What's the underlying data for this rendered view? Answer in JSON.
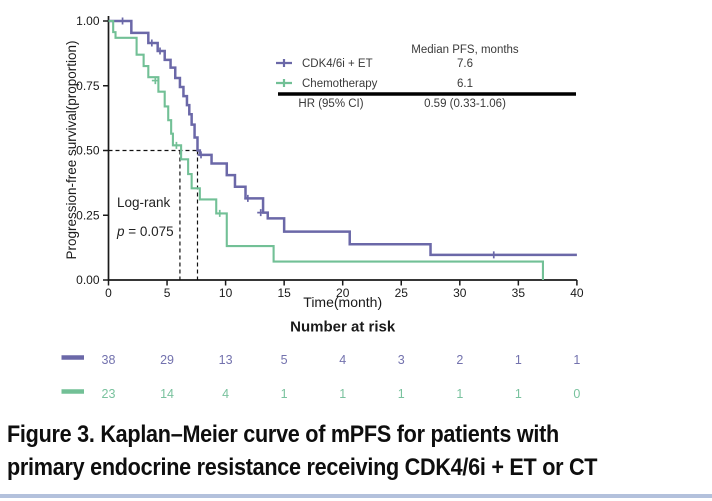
{
  "chart_data": {
    "type": "line",
    "subtype": "kaplan-meier-step",
    "xlabel": "Time(month)",
    "ylabel": "Progression-free survival(proportion)",
    "xlim": [
      0,
      40
    ],
    "ylim": [
      0,
      1
    ],
    "xticks": [
      0,
      5,
      10,
      15,
      20,
      25,
      30,
      35,
      40
    ],
    "ytick_labels": [
      "1.00",
      "0.75",
      "0.50",
      "0.25",
      "0.00"
    ],
    "ytick_values": [
      1.0,
      0.75,
      0.5,
      0.25,
      0.0
    ],
    "grid": false,
    "series": [
      {
        "name": "CDK4/6i + ET",
        "color": "#6b68a8",
        "median_pfs_months": 7.6,
        "steps": [
          [
            0,
            1.0
          ],
          [
            1.95,
            0.954
          ],
          [
            3.4,
            0.915
          ],
          [
            4.2,
            0.884
          ],
          [
            4.8,
            0.85
          ],
          [
            5.3,
            0.82
          ],
          [
            5.7,
            0.78
          ],
          [
            6.1,
            0.745
          ],
          [
            6.4,
            0.71
          ],
          [
            6.7,
            0.675
          ],
          [
            6.9,
            0.64
          ],
          [
            7.1,
            0.6
          ],
          [
            7.35,
            0.55
          ],
          [
            7.6,
            0.5
          ],
          [
            7.8,
            0.483
          ],
          [
            8.8,
            0.45
          ],
          [
            10.1,
            0.405
          ],
          [
            10.8,
            0.36
          ],
          [
            11.7,
            0.315
          ],
          [
            13.2,
            0.26
          ],
          [
            13.6,
            0.238
          ],
          [
            15.0,
            0.187
          ],
          [
            20.6,
            0.138
          ],
          [
            27.5,
            0.097
          ],
          [
            40,
            0.097
          ]
        ],
        "censors": [
          [
            1.2,
            1.0
          ],
          [
            3.7,
            0.915
          ],
          [
            4.4,
            0.884
          ],
          [
            7.9,
            0.483
          ],
          [
            11.9,
            0.315
          ],
          [
            13.0,
            0.26
          ],
          [
            32.9,
            0.097
          ]
        ]
      },
      {
        "name": "Chemotherapy",
        "color": "#72c096",
        "median_pfs_months": 6.1,
        "steps": [
          [
            0,
            1.0
          ],
          [
            0.4,
            0.957
          ],
          [
            0.6,
            0.935
          ],
          [
            2.4,
            0.87
          ],
          [
            3.0,
            0.826
          ],
          [
            3.4,
            0.783
          ],
          [
            4.26,
            0.727
          ],
          [
            4.8,
            0.67
          ],
          [
            5.1,
            0.617
          ],
          [
            5.35,
            0.565
          ],
          [
            5.5,
            0.52
          ],
          [
            6.2,
            0.466
          ],
          [
            6.8,
            0.409
          ],
          [
            7.1,
            0.354
          ],
          [
            7.8,
            0.311
          ],
          [
            9.2,
            0.257
          ],
          [
            10.1,
            0.131
          ],
          [
            14.1,
            0.071
          ],
          [
            37.1,
            0.0
          ]
        ],
        "censors": [
          [
            4.0,
            0.77
          ],
          [
            5.8,
            0.52
          ],
          [
            9.5,
            0.257
          ]
        ]
      }
    ],
    "median_reference_lines": {
      "y": 0.5,
      "x_values": [
        6.1,
        7.6
      ]
    },
    "annotations": {
      "logrank_label": "Log-rank",
      "p_italic": "p",
      "p_rest": " = 0.075"
    },
    "stats_table": {
      "header": "Median PFS, months",
      "rows": [
        {
          "label": "CDK4/6i + ET",
          "value": "7.6",
          "color": "#6b68a8"
        },
        {
          "label": "Chemotherapy",
          "value": "6.1",
          "color": "#72c096"
        }
      ],
      "hr_label": "HR (95% CI)",
      "hr_value": "0.59 (0.33-1.06)"
    },
    "risk_table": {
      "title": "Number at risk",
      "time_points": [
        0,
        5,
        10,
        15,
        20,
        25,
        30,
        35,
        40
      ],
      "rows": [
        {
          "name": "CDK4/6i + ET",
          "color": "#7372ae",
          "marker_color": "#6b68a8",
          "counts": [
            "38",
            "29",
            "13",
            "5",
            "4",
            "3",
            "2",
            "1",
            "1"
          ]
        },
        {
          "name": "Chemotherapy",
          "color": "#79c29e",
          "marker_color": "#72c096",
          "counts": [
            "23",
            "14",
            "4",
            "1",
            "1",
            "1",
            "1",
            "1",
            "0"
          ]
        }
      ]
    }
  },
  "caption": {
    "line1": "Figure 3. Kaplan–Meier curve of mPFS for patients with",
    "line2": "primary endocrine resistance receiving CDK4/6i + ET or CT"
  },
  "colors": {
    "cdk_purple": "#6b68a8",
    "chemo_green": "#72c096",
    "axis_black": "#1a1a1a",
    "table_text": "#3a3a3a",
    "divider_blue": "#b3c1dc"
  }
}
